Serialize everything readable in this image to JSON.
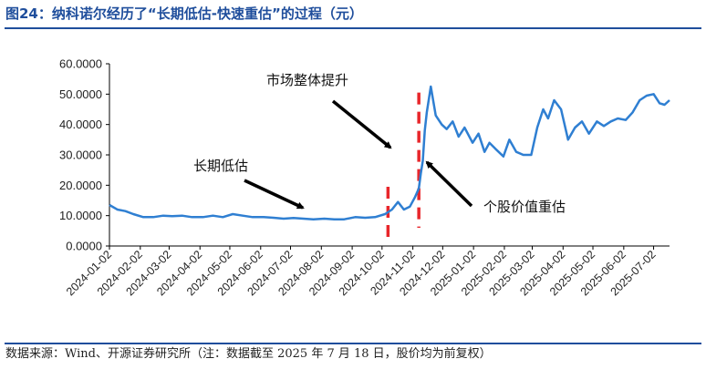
{
  "header": {
    "title": "图24：纳科诺尔经历了“长期低估-快速重估”的过程（元）"
  },
  "footer": {
    "source": "数据来源：Wind、开源证券研究所（注：数据截至 2025 年 7 月 18 日，股价均为前复权）"
  },
  "colors": {
    "title": "#1f4e9c",
    "series": "#2f7fd2",
    "marker_line": "#e8262b",
    "arrow": "#000000",
    "axis": "#000000"
  },
  "chart_data": {
    "type": "line",
    "title": "",
    "xlabel": "",
    "ylabel": "",
    "ylim": [
      0,
      60
    ],
    "y_tick_labels": [
      "0.0000",
      "10.0000",
      "20.0000",
      "30.0000",
      "40.0000",
      "50.0000",
      "60.0000"
    ],
    "x_tick_labels": [
      "2024-01-02",
      "2024-02-02",
      "2024-03-02",
      "2024-04-02",
      "2024-05-02",
      "2024-06-02",
      "2024-07-02",
      "2024-08-02",
      "2024-09-02",
      "2024-10-02",
      "2024-11-02",
      "2024-12-02",
      "2025-01-02",
      "2025-02-02",
      "2025-03-02",
      "2025-04-02",
      "2025-05-02",
      "2025-06-02",
      "2025-07-02"
    ],
    "x_range": [
      "2024-01-02",
      "2025-07-18"
    ],
    "grid": false,
    "legend": "none",
    "series": [
      {
        "x": [
          "2024-01-02",
          "2024-01-10",
          "2024-01-18",
          "2024-01-26",
          "2024-02-05",
          "2024-02-15",
          "2024-02-25",
          "2024-03-05",
          "2024-03-15",
          "2024-03-25",
          "2024-04-05",
          "2024-04-15",
          "2024-04-25",
          "2024-05-05",
          "2024-05-15",
          "2024-05-25",
          "2024-06-05",
          "2024-06-15",
          "2024-06-25",
          "2024-07-05",
          "2024-07-15",
          "2024-07-25",
          "2024-08-05",
          "2024-08-15",
          "2024-08-25",
          "2024-09-05",
          "2024-09-15",
          "2024-09-25",
          "2024-10-05",
          "2024-10-12",
          "2024-10-18",
          "2024-10-24",
          "2024-10-30",
          "2024-11-04",
          "2024-11-08",
          "2024-11-10",
          "2024-11-12",
          "2024-11-14",
          "2024-11-16",
          "2024-11-20",
          "2024-11-25",
          "2024-12-01",
          "2024-12-06",
          "2024-12-12",
          "2024-12-18",
          "2024-12-24",
          "2025-01-01",
          "2025-01-07",
          "2025-01-13",
          "2025-01-18",
          "2025-01-24",
          "2025-02-01",
          "2025-02-07",
          "2025-02-14",
          "2025-02-21",
          "2025-03-01",
          "2025-03-07",
          "2025-03-13",
          "2025-03-18",
          "2025-03-24",
          "2025-03-31",
          "2025-04-07",
          "2025-04-14",
          "2025-04-21",
          "2025-04-28",
          "2025-05-06",
          "2025-05-13",
          "2025-05-20",
          "2025-05-27",
          "2025-06-04",
          "2025-06-11",
          "2025-06-18",
          "2025-06-25",
          "2025-07-02",
          "2025-07-08",
          "2025-07-13",
          "2025-07-18"
        ],
        "values": [
          13.5,
          12.0,
          11.5,
          10.5,
          9.5,
          9.5,
          10.0,
          9.8,
          10.0,
          9.5,
          9.5,
          10.0,
          9.5,
          10.5,
          10.0,
          9.5,
          9.5,
          9.3,
          9.0,
          9.2,
          9.0,
          8.8,
          9.0,
          8.8,
          8.8,
          9.5,
          9.3,
          9.5,
          10.5,
          12.0,
          14.5,
          12.0,
          13.0,
          16.0,
          19.0,
          24.0,
          28.0,
          38.0,
          44.0,
          52.5,
          43.0,
          40.0,
          38.5,
          41.0,
          36.0,
          39.0,
          34.0,
          37.0,
          31.0,
          34.0,
          32.0,
          29.5,
          35.0,
          31.0,
          30.0,
          30.0,
          39.0,
          45.0,
          42.0,
          48.0,
          45.0,
          35.0,
          39.0,
          41.0,
          37.0,
          41.0,
          39.5,
          41.0,
          42.0,
          41.5,
          44.0,
          48.0,
          49.5,
          50.0,
          47.0,
          46.5,
          48.0
        ]
      }
    ],
    "reference_dates": [
      "2024-10-08",
      "2024-11-08"
    ],
    "annotations": [
      {
        "text": "市场整体提升"
      },
      {
        "text": "长期低估"
      },
      {
        "text": "个股价值重估"
      }
    ]
  }
}
